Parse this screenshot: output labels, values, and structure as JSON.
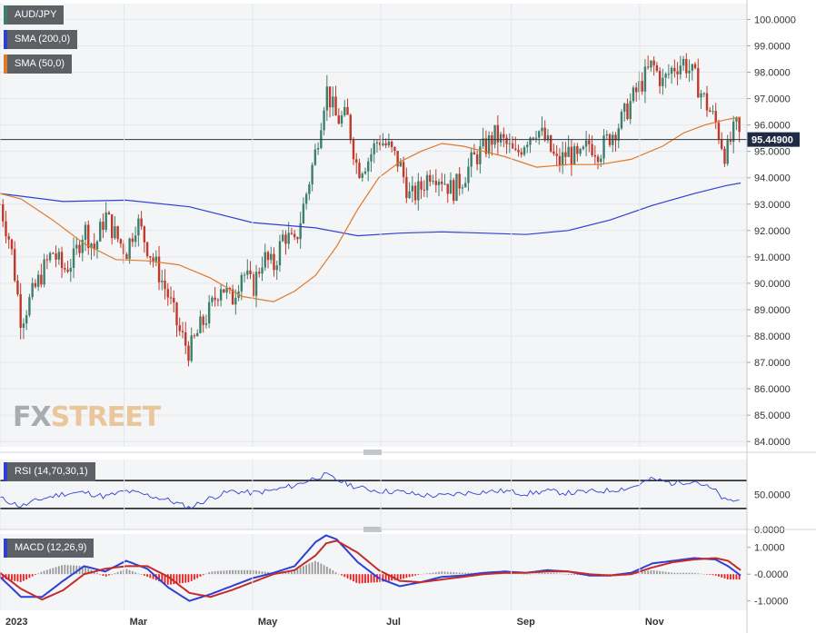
{
  "legends": {
    "pair": {
      "label": "AUD/JPY",
      "color": "#3e7f6b"
    },
    "sma200": {
      "label": "SMA (200,0)",
      "color": "#2d40d6"
    },
    "sma50": {
      "label": "SMA (50,0)",
      "color": "#e07a2a"
    },
    "rsi": {
      "label": "RSI (14,70,30,1)",
      "color": "#2d40d6"
    },
    "macd": {
      "label": "MACD (12,26,9)",
      "color": "#2d40d6"
    }
  },
  "logo": {
    "part1": "FX",
    "part2": "STREET"
  },
  "current_price": {
    "label": "95.44900",
    "value": 95.449
  },
  "chart_data": [
    {
      "type": "candlestick",
      "title": "AUD/JPY",
      "y_ticks": [
        "100.0000",
        "99.0000",
        "98.0000",
        "97.0000",
        "96.0000",
        "95.0000",
        "94.0000",
        "93.0000",
        "92.0000",
        "91.0000",
        "90.0000",
        "89.0000",
        "88.0000",
        "87.0000",
        "86.0000",
        "85.0000",
        "84.0000"
      ],
      "ylim": [
        83.8,
        100.6
      ],
      "x_ticks": [
        "2023",
        "Mar",
        "May",
        "Jul",
        "Sep",
        "Nov"
      ],
      "x_tick_days": [
        0,
        59,
        120,
        181,
        243,
        304
      ],
      "x_range_days": [
        0,
        355
      ],
      "series": [
        {
          "name": "SMA (200,0)",
          "color": "#2d40d6",
          "x": [
            0,
            10,
            30,
            60,
            90,
            120,
            150,
            170,
            190,
            210,
            230,
            250,
            270,
            290,
            310,
            330,
            345,
            352
          ],
          "y": [
            93.4,
            93.3,
            93.1,
            93.15,
            92.9,
            92.3,
            92.1,
            91.8,
            91.9,
            91.95,
            91.9,
            91.85,
            92.0,
            92.4,
            92.95,
            93.4,
            93.7,
            93.8
          ]
        },
        {
          "name": "SMA (50,0)",
          "color": "#e07a2a",
          "x": [
            0,
            10,
            25,
            40,
            55,
            70,
            85,
            100,
            115,
            130,
            140,
            150,
            160,
            170,
            180,
            190,
            200,
            210,
            220,
            230,
            240,
            255,
            270,
            285,
            300,
            315,
            325,
            335,
            345,
            352
          ],
          "y": [
            93.4,
            93.2,
            92.4,
            91.5,
            90.9,
            90.85,
            90.7,
            90.2,
            89.5,
            89.3,
            89.7,
            90.3,
            91.4,
            92.8,
            94.0,
            94.6,
            95.0,
            95.3,
            95.2,
            95.0,
            94.8,
            94.4,
            94.5,
            94.5,
            94.7,
            95.2,
            95.7,
            96.0,
            96.2,
            96.3
          ]
        },
        {
          "name": "AUD/JPY close",
          "color": "#3e7f6b",
          "x": [
            0,
            5,
            10,
            15,
            20,
            25,
            30,
            35,
            40,
            45,
            50,
            55,
            60,
            65,
            70,
            75,
            80,
            85,
            90,
            95,
            100,
            105,
            110,
            115,
            120,
            125,
            130,
            135,
            140,
            145,
            150,
            155,
            160,
            165,
            170,
            175,
            180,
            185,
            190,
            195,
            200,
            205,
            210,
            215,
            220,
            225,
            230,
            235,
            240,
            245,
            250,
            255,
            260,
            265,
            270,
            275,
            280,
            285,
            290,
            295,
            300,
            305,
            310,
            315,
            320,
            325,
            330,
            335,
            340,
            345,
            348,
            350,
            352
          ],
          "y": [
            93.0,
            91.5,
            88.6,
            89.5,
            90.4,
            91.2,
            90.5,
            90.9,
            92.1,
            91.3,
            92.6,
            91.8,
            91.2,
            92.4,
            91.4,
            90.5,
            89.5,
            88.2,
            87.4,
            88.3,
            89.0,
            90.0,
            89.3,
            90.5,
            89.8,
            91.0,
            90.6,
            91.9,
            91.4,
            93.2,
            95.0,
            97.4,
            96.2,
            96.3,
            94.3,
            94.7,
            95.5,
            95.1,
            94.5,
            93.2,
            93.6,
            94.3,
            94.0,
            93.5,
            94.0,
            94.7,
            95.1,
            95.6,
            95.3,
            94.8,
            95.5,
            95.9,
            95.3,
            94.5,
            95.0,
            94.6,
            95.3,
            95.0,
            95.6,
            96.1,
            96.9,
            97.6,
            98.3,
            97.6,
            98.2,
            98.4,
            97.8,
            96.9,
            96.1,
            94.8,
            95.6,
            95.9,
            95.45
          ]
        }
      ]
    },
    {
      "type": "line",
      "title": "RSI (14,70,30,1)",
      "y_ticks": [
        "50.0000",
        "0.0000"
      ],
      "ylim": [
        0,
        100
      ],
      "levels": [
        70,
        30
      ],
      "series": [
        {
          "name": "RSI (14,70,30,1)",
          "color": "#2d40d6",
          "x": [
            0,
            10,
            20,
            30,
            40,
            50,
            60,
            70,
            80,
            90,
            100,
            110,
            120,
            130,
            140,
            150,
            155,
            160,
            170,
            180,
            190,
            200,
            210,
            220,
            230,
            240,
            250,
            260,
            270,
            280,
            290,
            300,
            310,
            320,
            330,
            340,
            345,
            350,
            352
          ],
          "y": [
            45,
            33,
            44,
            51,
            53,
            47,
            55,
            49,
            42,
            31,
            45,
            55,
            52,
            56,
            63,
            74,
            78,
            71,
            60,
            55,
            54,
            49,
            48,
            52,
            54,
            55,
            51,
            55,
            52,
            54,
            56,
            60,
            72,
            66,
            70,
            55,
            40,
            42,
            41
          ]
        }
      ]
    },
    {
      "type": "bar+line",
      "title": "MACD (12,26,9)",
      "y_ticks": [
        "1.0000",
        "-0.0000",
        "-1.0000"
      ],
      "ylim": [
        -1.35,
        1.5
      ],
      "series": [
        {
          "name": "MACD",
          "color": "#2d40d6",
          "x": [
            0,
            10,
            20,
            30,
            40,
            50,
            60,
            70,
            80,
            90,
            100,
            110,
            120,
            130,
            140,
            150,
            155,
            160,
            170,
            180,
            190,
            200,
            210,
            220,
            230,
            240,
            250,
            260,
            270,
            280,
            290,
            300,
            310,
            320,
            330,
            340,
            346,
            352
          ],
          "y": [
            -0.1,
            -0.85,
            -0.85,
            -0.25,
            0.3,
            0.1,
            0.5,
            0.2,
            -0.5,
            -1.0,
            -0.75,
            -0.45,
            -0.15,
            0.05,
            0.3,
            1.2,
            1.45,
            1.3,
            0.45,
            -0.15,
            -0.45,
            -0.3,
            -0.1,
            -0.05,
            0.05,
            0.1,
            0.05,
            0.15,
            0.1,
            -0.05,
            -0.05,
            0.05,
            0.4,
            0.5,
            0.6,
            0.55,
            0.3,
            -0.05
          ]
        },
        {
          "name": "Signal",
          "color": "#c42b2b",
          "x": [
            0,
            10,
            20,
            30,
            40,
            50,
            60,
            70,
            80,
            90,
            100,
            110,
            120,
            130,
            140,
            150,
            155,
            160,
            170,
            180,
            190,
            200,
            210,
            220,
            230,
            240,
            250,
            260,
            270,
            280,
            290,
            300,
            310,
            320,
            330,
            340,
            346,
            352
          ],
          "y": [
            0.05,
            -0.55,
            -0.95,
            -0.6,
            0.0,
            0.2,
            0.3,
            0.3,
            -0.1,
            -0.7,
            -0.85,
            -0.6,
            -0.3,
            0.0,
            0.15,
            0.7,
            1.15,
            1.25,
            0.8,
            0.15,
            -0.25,
            -0.3,
            -0.2,
            -0.1,
            0.0,
            0.05,
            0.05,
            0.1,
            0.1,
            0.0,
            -0.05,
            0.0,
            0.25,
            0.45,
            0.55,
            0.6,
            0.5,
            0.15
          ]
        }
      ]
    }
  ]
}
